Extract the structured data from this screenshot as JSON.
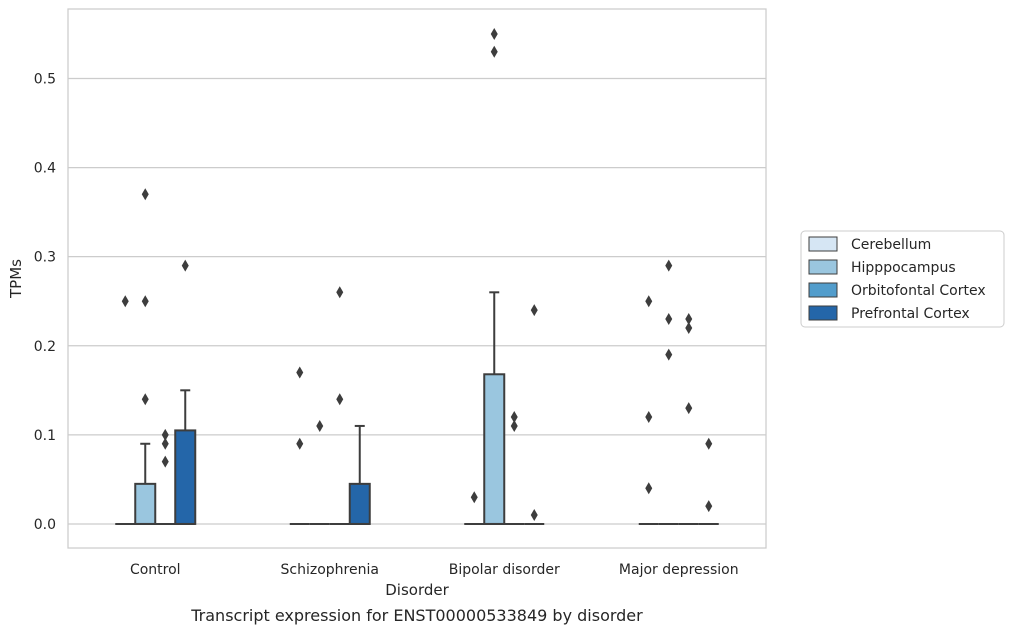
{
  "caption": "Transcript expression for ENST00000533849 by disorder",
  "colors": {
    "Cerebellum": "#d6e6f4",
    "Hipppocampus": "#9ac6df",
    "Orbitofontal Cortex": "#529dcc",
    "Prefrontal Cortex": "#2466a9",
    "grid": "#cccccc",
    "line": "#3d3d3d"
  },
  "chart_data": {
    "type": "box",
    "xlabel": "Disorder",
    "ylabel": "TPMs",
    "ylim": [
      -0.027,
      0.578
    ],
    "yticks": [
      "0.0",
      "0.1",
      "0.2",
      "0.3",
      "0.4",
      "0.5"
    ],
    "grid": true,
    "legend_position": "right",
    "categories": [
      "Control",
      "Schizophrenia",
      "Bipolar disorder",
      "Major depression"
    ],
    "hue_order": [
      "Cerebellum",
      "Hipppocampus",
      "Orbitofontal Cortex",
      "Prefrontal Cortex"
    ],
    "boxes": [
      {
        "category": "Control",
        "hue": "Cerebellum",
        "q1": 0,
        "median": 0,
        "q3": 0,
        "whislo": 0,
        "whishi": 0,
        "fliers": [
          0.25
        ]
      },
      {
        "category": "Control",
        "hue": "Hipppocampus",
        "q1": 0,
        "median": 0,
        "q3": 0.045,
        "whislo": 0,
        "whishi": 0.09,
        "fliers": [
          0.37,
          0.25,
          0.14
        ]
      },
      {
        "category": "Control",
        "hue": "Orbitofontal Cortex",
        "q1": 0,
        "median": 0,
        "q3": 0,
        "whislo": 0,
        "whishi": 0,
        "fliers": [
          0.1,
          0.09,
          0.07
        ]
      },
      {
        "category": "Control",
        "hue": "Prefrontal Cortex",
        "q1": 0,
        "median": 0,
        "q3": 0.105,
        "whislo": 0,
        "whishi": 0.15,
        "fliers": [
          0.29
        ]
      },
      {
        "category": "Schizophrenia",
        "hue": "Cerebellum",
        "q1": 0,
        "median": 0,
        "q3": 0,
        "whislo": 0,
        "whishi": 0,
        "fliers": [
          0.17,
          0.09
        ]
      },
      {
        "category": "Schizophrenia",
        "hue": "Hipppocampus",
        "q1": 0,
        "median": 0,
        "q3": 0,
        "whislo": 0,
        "whishi": 0,
        "fliers": [
          0.11
        ]
      },
      {
        "category": "Schizophrenia",
        "hue": "Orbitofontal Cortex",
        "q1": 0,
        "median": 0,
        "q3": 0,
        "whislo": 0,
        "whishi": 0,
        "fliers": [
          0.26,
          0.14
        ]
      },
      {
        "category": "Schizophrenia",
        "hue": "Prefrontal Cortex",
        "q1": 0,
        "median": 0,
        "q3": 0.045,
        "whislo": 0,
        "whishi": 0.11,
        "fliers": []
      },
      {
        "category": "Bipolar disorder",
        "hue": "Cerebellum",
        "q1": 0,
        "median": 0,
        "q3": 0,
        "whislo": 0,
        "whishi": 0,
        "fliers": [
          0.03
        ]
      },
      {
        "category": "Bipolar disorder",
        "hue": "Hipppocampus",
        "q1": 0,
        "median": 0,
        "q3": 0.168,
        "whislo": 0,
        "whishi": 0.26,
        "fliers": [
          0.55,
          0.53
        ]
      },
      {
        "category": "Bipolar disorder",
        "hue": "Orbitofontal Cortex",
        "q1": 0,
        "median": 0,
        "q3": 0,
        "whislo": 0,
        "whishi": 0,
        "fliers": [
          0.12,
          0.11
        ]
      },
      {
        "category": "Bipolar disorder",
        "hue": "Prefrontal Cortex",
        "q1": 0,
        "median": 0,
        "q3": 0,
        "whislo": 0,
        "whishi": 0,
        "fliers": [
          0.24,
          0.01
        ]
      },
      {
        "category": "Major depression",
        "hue": "Cerebellum",
        "q1": 0,
        "median": 0,
        "q3": 0,
        "whislo": 0,
        "whishi": 0,
        "fliers": [
          0.25,
          0.12,
          0.04
        ]
      },
      {
        "category": "Major depression",
        "hue": "Hipppocampus",
        "q1": 0,
        "median": 0,
        "q3": 0,
        "whislo": 0,
        "whishi": 0,
        "fliers": [
          0.29,
          0.23,
          0.19
        ]
      },
      {
        "category": "Major depression",
        "hue": "Orbitofontal Cortex",
        "q1": 0,
        "median": 0,
        "q3": 0,
        "whislo": 0,
        "whishi": 0,
        "fliers": [
          0.23,
          0.22,
          0.13
        ]
      },
      {
        "category": "Major depression",
        "hue": "Prefrontal Cortex",
        "q1": 0,
        "median": 0,
        "q3": 0,
        "whislo": 0,
        "whishi": 0,
        "fliers": [
          0.09,
          0.02
        ]
      }
    ]
  }
}
